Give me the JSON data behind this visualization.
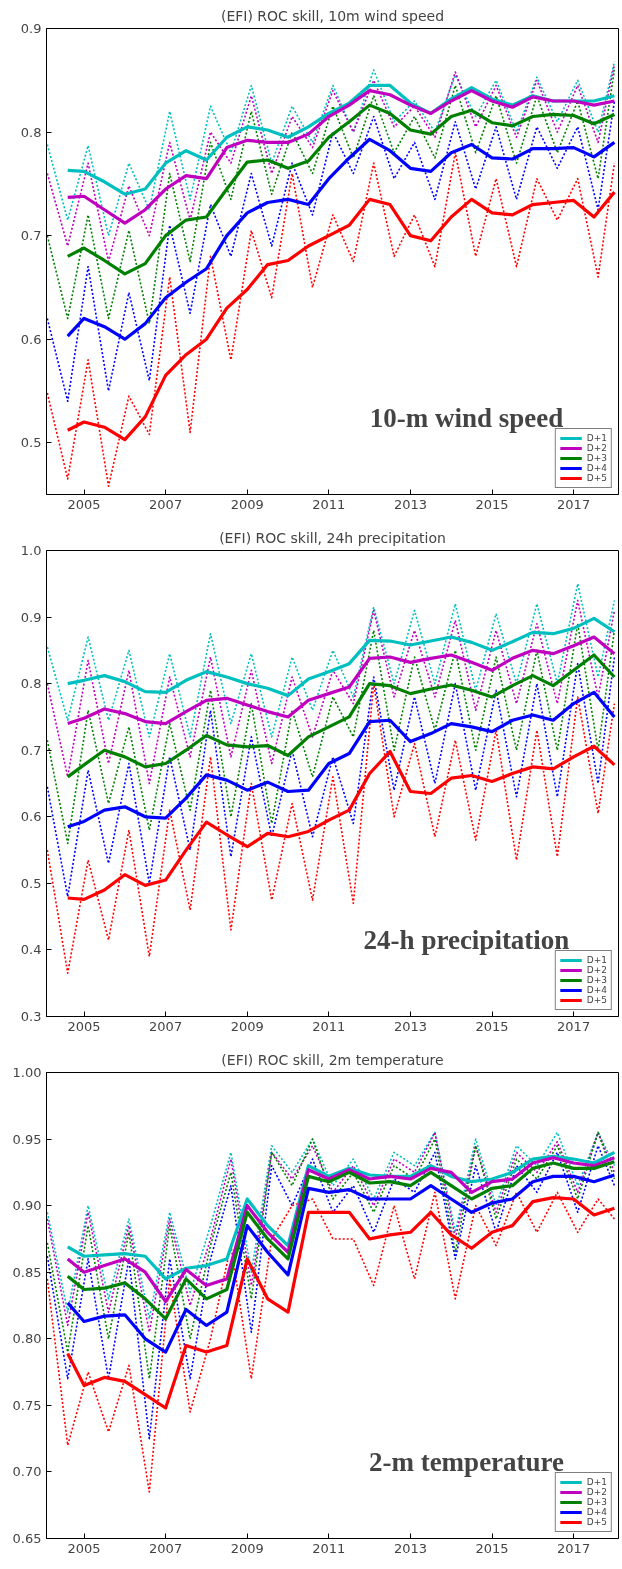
{
  "chart_data": [
    {
      "type": "line",
      "title": "(EFI) ROC skill, 10m wind speed",
      "annotations": [
        "10-m wind speed"
      ],
      "line_style": "solid",
      "legend": "bottom right",
      "grid": false,
      "marker": "none",
      "xlim": [
        2004.08,
        2018.1
      ],
      "xticks": [
        2005,
        2007,
        2009,
        2011,
        2013,
        2015,
        2017
      ],
      "ylim": [
        0.45,
        0.9
      ],
      "yticks": [
        0.5,
        0.6,
        0.7,
        0.8,
        0.9
      ],
      "x": [
        2004.6,
        2005,
        2005.5,
        2006,
        2006.5,
        2007,
        2007.5,
        2008,
        2008.5,
        2009,
        2009.5,
        2010,
        2010.5,
        2011,
        2011.5,
        2012,
        2012.5,
        2013,
        2013.5,
        2014,
        2014.5,
        2015,
        2015.5,
        2016,
        2016.5,
        2017,
        2017.5,
        2018
      ],
      "series": [
        {
          "name": "D+1",
          "color": "#00bfbf",
          "values": [
            0.763,
            0.762,
            0.752,
            0.74,
            0.745,
            0.77,
            0.782,
            0.773,
            0.795,
            0.805,
            0.802,
            0.795,
            0.805,
            0.818,
            0.828,
            0.845,
            0.845,
            0.828,
            0.818,
            0.832,
            0.843,
            0.832,
            0.826,
            0.835,
            0.83,
            0.83,
            0.83,
            0.835
          ]
        },
        {
          "name": "D+2",
          "color": "#bf00bf",
          "values": [
            0.737,
            0.738,
            0.725,
            0.712,
            0.725,
            0.745,
            0.758,
            0.755,
            0.785,
            0.792,
            0.79,
            0.79,
            0.798,
            0.815,
            0.826,
            0.84,
            0.836,
            0.826,
            0.818,
            0.83,
            0.84,
            0.83,
            0.824,
            0.834,
            0.83,
            0.83,
            0.826,
            0.83
          ]
        },
        {
          "name": "D+3",
          "color": "#008000",
          "values": [
            0.68,
            0.688,
            0.676,
            0.663,
            0.673,
            0.7,
            0.715,
            0.718,
            0.745,
            0.771,
            0.773,
            0.765,
            0.772,
            0.795,
            0.81,
            0.826,
            0.818,
            0.802,
            0.798,
            0.815,
            0.821,
            0.809,
            0.806,
            0.815,
            0.817,
            0.816,
            0.808,
            0.817
          ]
        },
        {
          "name": "D+4",
          "color": "#0000ff",
          "values": [
            0.603,
            0.62,
            0.612,
            0.6,
            0.615,
            0.64,
            0.655,
            0.668,
            0.7,
            0.722,
            0.732,
            0.735,
            0.73,
            0.755,
            0.775,
            0.793,
            0.782,
            0.765,
            0.762,
            0.78,
            0.788,
            0.775,
            0.774,
            0.784,
            0.784,
            0.785,
            0.776,
            0.79
          ]
        },
        {
          "name": "D+5",
          "color": "#ff0000",
          "values": [
            0.512,
            0.52,
            0.515,
            0.503,
            0.525,
            0.565,
            0.585,
            0.6,
            0.63,
            0.648,
            0.672,
            0.676,
            0.69,
            0.7,
            0.71,
            0.735,
            0.73,
            0.7,
            0.695,
            0.718,
            0.735,
            0.722,
            0.72,
            0.73,
            0.732,
            0.734,
            0.718,
            0.742
          ]
        },
        {
          "color": "#00bfbf",
          "line_style": "dotted",
          "x": [
            2004.1,
            2004.6,
            2005.1,
            2005.6,
            2006.1,
            2006.6,
            2007.1,
            2007.6,
            2008.1,
            2008.6,
            2009.1,
            2009.6,
            2010.1,
            2010.6,
            2011.1,
            2011.6,
            2012.1,
            2012.6,
            2013.1,
            2013.6,
            2014.1,
            2014.6,
            2015.1,
            2015.6,
            2016.1,
            2016.6,
            2017.1,
            2017.6,
            2018.0
          ],
          "values": [
            0.788,
            0.715,
            0.787,
            0.7,
            0.77,
            0.725,
            0.82,
            0.735,
            0.825,
            0.78,
            0.845,
            0.77,
            0.825,
            0.79,
            0.845,
            0.8,
            0.86,
            0.81,
            0.83,
            0.8,
            0.855,
            0.815,
            0.85,
            0.8,
            0.853,
            0.81,
            0.85,
            0.8,
            0.868
          ]
        },
        {
          "color": "#bf00bf",
          "line_style": "dotted",
          "x": [
            2004.1,
            2004.6,
            2005.1,
            2005.6,
            2006.1,
            2006.6,
            2007.1,
            2007.6,
            2008.1,
            2008.6,
            2009.1,
            2009.6,
            2010.1,
            2010.6,
            2011.1,
            2011.6,
            2012.1,
            2012.6,
            2013.1,
            2013.6,
            2014.1,
            2014.6,
            2015.1,
            2015.6,
            2016.1,
            2016.6,
            2017.1,
            2017.6,
            2018.0
          ],
          "values": [
            0.76,
            0.69,
            0.77,
            0.675,
            0.748,
            0.7,
            0.79,
            0.715,
            0.8,
            0.77,
            0.835,
            0.76,
            0.815,
            0.785,
            0.84,
            0.8,
            0.85,
            0.805,
            0.825,
            0.795,
            0.858,
            0.805,
            0.845,
            0.795,
            0.85,
            0.8,
            0.845,
            0.79,
            0.865
          ]
        },
        {
          "color": "#008000",
          "line_style": "dotted",
          "x": [
            2004.1,
            2004.6,
            2005.1,
            2005.6,
            2006.1,
            2006.6,
            2007.1,
            2007.6,
            2008.1,
            2008.6,
            2009.1,
            2009.6,
            2010.1,
            2010.6,
            2011.1,
            2011.6,
            2012.1,
            2012.6,
            2013.1,
            2013.6,
            2014.1,
            2014.6,
            2015.1,
            2015.6,
            2016.1,
            2016.6,
            2017.1,
            2017.6,
            2018.0
          ],
          "values": [
            0.7,
            0.62,
            0.72,
            0.62,
            0.705,
            0.615,
            0.76,
            0.675,
            0.79,
            0.735,
            0.82,
            0.74,
            0.8,
            0.76,
            0.825,
            0.775,
            0.835,
            0.78,
            0.815,
            0.775,
            0.845,
            0.78,
            0.835,
            0.77,
            0.835,
            0.78,
            0.83,
            0.755,
            0.86
          ]
        },
        {
          "color": "#0000ff",
          "line_style": "dotted",
          "x": [
            2004.1,
            2004.6,
            2005.1,
            2005.6,
            2006.1,
            2006.6,
            2007.1,
            2007.6,
            2008.1,
            2008.6,
            2009.1,
            2009.6,
            2010.1,
            2010.6,
            2011.1,
            2011.6,
            2012.1,
            2012.6,
            2013.1,
            2013.6,
            2014.1,
            2014.6,
            2015.1,
            2015.6,
            2016.1,
            2016.6,
            2017.1,
            2017.6,
            2018.0
          ],
          "values": [
            0.62,
            0.54,
            0.67,
            0.55,
            0.645,
            0.56,
            0.71,
            0.625,
            0.73,
            0.68,
            0.76,
            0.69,
            0.77,
            0.72,
            0.8,
            0.76,
            0.815,
            0.755,
            0.79,
            0.735,
            0.81,
            0.745,
            0.805,
            0.735,
            0.805,
            0.765,
            0.805,
            0.725,
            0.83
          ]
        },
        {
          "color": "#ff0000",
          "line_style": "dotted",
          "x": [
            2004.1,
            2004.6,
            2005.1,
            2005.6,
            2006.1,
            2006.6,
            2007.1,
            2007.6,
            2008.1,
            2008.6,
            2009.1,
            2009.6,
            2010.1,
            2010.6,
            2011.1,
            2011.6,
            2012.1,
            2012.6,
            2013.1,
            2013.6,
            2014.1,
            2014.6,
            2015.1,
            2015.6,
            2016.1,
            2016.6,
            2017.1,
            2017.6,
            2018.0
          ],
          "values": [
            0.548,
            0.465,
            0.58,
            0.458,
            0.545,
            0.508,
            0.66,
            0.51,
            0.68,
            0.58,
            0.705,
            0.64,
            0.76,
            0.65,
            0.72,
            0.675,
            0.77,
            0.68,
            0.72,
            0.67,
            0.78,
            0.68,
            0.755,
            0.67,
            0.755,
            0.715,
            0.755,
            0.66,
            0.77
          ]
        }
      ]
    },
    {
      "type": "line",
      "title": "(EFI) ROC skill, 24h precipitation",
      "annotations": [
        "24-h precipitation"
      ],
      "line_style": "solid",
      "legend": "bottom right",
      "grid": false,
      "marker": "none",
      "xlim": [
        2004.08,
        2018.1
      ],
      "xticks": [
        2005,
        2007,
        2009,
        2011,
        2013,
        2015,
        2017
      ],
      "ylim": [
        0.3,
        1.0
      ],
      "yticks": [
        0.3,
        0.4,
        0.5,
        0.6,
        0.7,
        0.8,
        0.9,
        {
          "value": 1.0,
          "label": "1.0"
        }
      ],
      "x": [
        2004.6,
        2005,
        2005.5,
        2006,
        2006.5,
        2007,
        2007.5,
        2008,
        2008.5,
        2009,
        2009.5,
        2010,
        2010.5,
        2011,
        2011.5,
        2012,
        2012.5,
        2013,
        2013.5,
        2014,
        2014.5,
        2015,
        2015.5,
        2016,
        2016.5,
        2017,
        2017.5,
        2018
      ],
      "series": [
        {
          "name": "D+1",
          "color": "#00bfbf",
          "values": [
            0.8,
            0.805,
            0.812,
            0.803,
            0.788,
            0.787,
            0.805,
            0.818,
            0.81,
            0.8,
            0.793,
            0.782,
            0.807,
            0.818,
            0.83,
            0.865,
            0.864,
            0.858,
            0.864,
            0.87,
            0.862,
            0.85,
            0.863,
            0.877,
            0.875,
            0.883,
            0.898,
            0.878
          ]
        },
        {
          "name": "D+2",
          "color": "#bf00bf",
          "values": [
            0.74,
            0.748,
            0.762,
            0.755,
            0.743,
            0.74,
            0.758,
            0.775,
            0.778,
            0.768,
            0.758,
            0.75,
            0.775,
            0.785,
            0.795,
            0.838,
            0.84,
            0.832,
            0.838,
            0.843,
            0.832,
            0.82,
            0.838,
            0.85,
            0.845,
            0.857,
            0.87,
            0.845
          ]
        },
        {
          "name": "D+3",
          "color": "#008000",
          "values": [
            0.66,
            0.678,
            0.7,
            0.69,
            0.675,
            0.68,
            0.7,
            0.722,
            0.708,
            0.705,
            0.707,
            0.692,
            0.72,
            0.735,
            0.75,
            0.8,
            0.797,
            0.785,
            0.792,
            0.798,
            0.79,
            0.78,
            0.797,
            0.812,
            0.797,
            0.82,
            0.843,
            0.81
          ]
        },
        {
          "name": "D+4",
          "color": "#0000ff",
          "values": [
            0.585,
            0.593,
            0.61,
            0.615,
            0.6,
            0.598,
            0.628,
            0.663,
            0.655,
            0.64,
            0.652,
            0.638,
            0.64,
            0.68,
            0.695,
            0.743,
            0.745,
            0.713,
            0.725,
            0.74,
            0.735,
            0.728,
            0.745,
            0.753,
            0.745,
            0.77,
            0.787,
            0.75
          ]
        },
        {
          "name": "D+5",
          "color": "#ff0000",
          "values": [
            0.478,
            0.476,
            0.49,
            0.513,
            0.497,
            0.505,
            0.55,
            0.592,
            0.573,
            0.555,
            0.575,
            0.57,
            0.578,
            0.595,
            0.61,
            0.665,
            0.698,
            0.638,
            0.635,
            0.658,
            0.662,
            0.653,
            0.665,
            0.675,
            0.672,
            0.69,
            0.706,
            0.678
          ]
        },
        {
          "color": "#00bfbf",
          "line_style": "dotted",
          "x": [
            2004.1,
            2004.6,
            2005.1,
            2005.6,
            2006.1,
            2006.6,
            2007.1,
            2007.6,
            2008.1,
            2008.6,
            2009.1,
            2009.6,
            2010.1,
            2010.6,
            2011.1,
            2011.6,
            2012.1,
            2012.6,
            2013.1,
            2013.6,
            2014.1,
            2014.6,
            2015.1,
            2015.6,
            2016.1,
            2016.6,
            2017.1,
            2017.6,
            2018.0
          ],
          "values": [
            0.855,
            0.745,
            0.87,
            0.745,
            0.85,
            0.72,
            0.845,
            0.72,
            0.875,
            0.74,
            0.845,
            0.72,
            0.84,
            0.76,
            0.85,
            0.78,
            0.915,
            0.8,
            0.91,
            0.8,
            0.92,
            0.79,
            0.905,
            0.8,
            0.92,
            0.8,
            0.95,
            0.81,
            0.925
          ]
        },
        {
          "color": "#bf00bf",
          "line_style": "dotted",
          "x": [
            2004.1,
            2004.6,
            2005.1,
            2005.6,
            2006.1,
            2006.6,
            2007.1,
            2007.6,
            2008.1,
            2008.6,
            2009.1,
            2009.6,
            2010.1,
            2010.6,
            2011.1,
            2011.6,
            2012.1,
            2012.6,
            2013.1,
            2013.6,
            2014.1,
            2014.6,
            2015.1,
            2015.6,
            2016.1,
            2016.6,
            2017.1,
            2017.6,
            2018.0
          ],
          "values": [
            0.8,
            0.66,
            0.835,
            0.68,
            0.82,
            0.65,
            0.81,
            0.69,
            0.84,
            0.69,
            0.82,
            0.68,
            0.81,
            0.72,
            0.82,
            0.77,
            0.91,
            0.78,
            0.88,
            0.78,
            0.895,
            0.76,
            0.88,
            0.77,
            0.89,
            0.77,
            0.925,
            0.78,
            0.91
          ]
        },
        {
          "color": "#008000",
          "line_style": "dotted",
          "x": [
            2004.1,
            2004.6,
            2005.1,
            2005.6,
            2006.1,
            2006.6,
            2007.1,
            2007.6,
            2008.1,
            2008.6,
            2009.1,
            2009.6,
            2010.1,
            2010.6,
            2011.1,
            2011.6,
            2012.1,
            2012.6,
            2013.1,
            2013.6,
            2014.1,
            2014.6,
            2015.1,
            2015.6,
            2016.1,
            2016.6,
            2017.1,
            2017.6,
            2018.0
          ],
          "values": [
            0.715,
            0.56,
            0.76,
            0.62,
            0.735,
            0.58,
            0.74,
            0.61,
            0.79,
            0.6,
            0.77,
            0.59,
            0.76,
            0.66,
            0.78,
            0.72,
            0.88,
            0.7,
            0.84,
            0.73,
            0.85,
            0.7,
            0.84,
            0.7,
            0.85,
            0.7,
            0.89,
            0.7,
            0.88
          ]
        },
        {
          "color": "#0000ff",
          "line_style": "dotted",
          "x": [
            2004.1,
            2004.6,
            2005.1,
            2005.6,
            2006.1,
            2006.6,
            2007.1,
            2007.6,
            2008.1,
            2008.6,
            2009.1,
            2009.6,
            2010.1,
            2010.6,
            2011.1,
            2011.6,
            2012.1,
            2012.6,
            2013.1,
            2013.6,
            2014.1,
            2014.6,
            2015.1,
            2015.6,
            2016.1,
            2016.6,
            2017.1,
            2017.6,
            2018.0
          ],
          "values": [
            0.645,
            0.48,
            0.67,
            0.53,
            0.68,
            0.5,
            0.69,
            0.55,
            0.76,
            0.54,
            0.72,
            0.57,
            0.7,
            0.57,
            0.69,
            0.59,
            0.81,
            0.64,
            0.78,
            0.65,
            0.8,
            0.64,
            0.79,
            0.63,
            0.8,
            0.63,
            0.83,
            0.65,
            0.84
          ]
        },
        {
          "color": "#ff0000",
          "line_style": "dotted",
          "x": [
            2004.1,
            2004.6,
            2005.1,
            2005.6,
            2006.1,
            2006.6,
            2007.1,
            2007.6,
            2008.1,
            2008.6,
            2009.1,
            2009.6,
            2010.1,
            2010.6,
            2011.1,
            2011.6,
            2012.1,
            2012.6,
            2013.1,
            2013.6,
            2014.1,
            2014.6,
            2015.1,
            2015.6,
            2016.1,
            2016.6,
            2017.1,
            2017.6,
            2018.0
          ],
          "values": [
            0.55,
            0.365,
            0.535,
            0.415,
            0.58,
            0.39,
            0.61,
            0.46,
            0.69,
            0.43,
            0.65,
            0.475,
            0.62,
            0.475,
            0.66,
            0.47,
            0.8,
            0.6,
            0.71,
            0.57,
            0.715,
            0.565,
            0.73,
            0.535,
            0.73,
            0.54,
            0.78,
            0.605,
            0.77
          ]
        }
      ]
    },
    {
      "type": "line",
      "title": "(EFI) ROC skill, 2m temperature",
      "annotations": [
        "2-m temperature"
      ],
      "line_style": "solid",
      "legend": "bottom right",
      "grid": false,
      "marker": "none",
      "xlim": [
        2004.08,
        2018.1
      ],
      "xticks": [
        2005,
        2007,
        2009,
        2011,
        2013,
        2015,
        2017
      ],
      "ylim": [
        0.65,
        1.0
      ],
      "yticks": [
        {
          "value": 0.65,
          "label": "0.65"
        },
        {
          "value": 0.7,
          "label": "0.70"
        },
        {
          "value": 0.75,
          "label": "0.75"
        },
        {
          "value": 0.8,
          "label": "0.80"
        },
        {
          "value": 0.85,
          "label": "0.85"
        },
        {
          "value": 0.9,
          "label": "0.90"
        },
        {
          "value": 0.95,
          "label": "0.95"
        },
        {
          "value": 1.0,
          "label": "1.00"
        }
      ],
      "x": [
        2004.6,
        2005,
        2005.5,
        2006,
        2006.5,
        2007,
        2007.5,
        2008,
        2008.5,
        2009,
        2009.5,
        2010,
        2010.5,
        2011,
        2011.5,
        2012,
        2012.5,
        2013,
        2013.5,
        2014,
        2014.5,
        2015,
        2015.5,
        2016,
        2016.5,
        2017,
        2017.5,
        2018
      ],
      "series": [
        {
          "name": "D+1",
          "color": "#00bfbf",
          "values": [
            0.869,
            0.862,
            0.863,
            0.864,
            0.862,
            0.845,
            0.853,
            0.855,
            0.86,
            0.905,
            0.885,
            0.87,
            0.93,
            0.922,
            0.928,
            0.923,
            0.922,
            0.922,
            0.93,
            0.922,
            0.918,
            0.92,
            0.925,
            0.935,
            0.937,
            0.935,
            0.932,
            0.94
          ]
        },
        {
          "name": "D+2",
          "color": "#bf00bf",
          "values": [
            0.86,
            0.85,
            0.855,
            0.86,
            0.85,
            0.828,
            0.852,
            0.84,
            0.845,
            0.9,
            0.88,
            0.865,
            0.927,
            0.92,
            0.927,
            0.92,
            0.922,
            0.92,
            0.928,
            0.925,
            0.91,
            0.918,
            0.92,
            0.932,
            0.936,
            0.932,
            0.93,
            0.936
          ]
        },
        {
          "name": "D+3",
          "color": "#008000",
          "values": [
            0.847,
            0.837,
            0.838,
            0.842,
            0.83,
            0.815,
            0.845,
            0.83,
            0.837,
            0.895,
            0.875,
            0.86,
            0.922,
            0.918,
            0.925,
            0.917,
            0.918,
            0.915,
            0.925,
            0.915,
            0.905,
            0.913,
            0.915,
            0.928,
            0.932,
            0.928,
            0.928,
            0.933
          ]
        },
        {
          "name": "D+4",
          "color": "#0000ff",
          "values": [
            0.827,
            0.813,
            0.817,
            0.818,
            0.8,
            0.79,
            0.822,
            0.81,
            0.82,
            0.885,
            0.865,
            0.848,
            0.913,
            0.91,
            0.912,
            0.905,
            0.905,
            0.905,
            0.915,
            0.905,
            0.895,
            0.902,
            0.905,
            0.918,
            0.922,
            0.922,
            0.918,
            0.923
          ]
        },
        {
          "name": "D+5",
          "color": "#ff0000",
          "values": [
            0.789,
            0.765,
            0.771,
            0.768,
            0.758,
            0.748,
            0.795,
            0.79,
            0.795,
            0.86,
            0.83,
            0.82,
            0.895,
            0.895,
            0.895,
            0.875,
            0.878,
            0.88,
            0.895,
            0.878,
            0.868,
            0.88,
            0.885,
            0.903,
            0.906,
            0.905,
            0.893,
            0.898
          ]
        },
        {
          "color": "#00bfbf",
          "line_style": "dotted",
          "x": [
            2004.1,
            2004.6,
            2005.1,
            2005.6,
            2006.1,
            2006.6,
            2007.1,
            2007.6,
            2008.1,
            2008.6,
            2009.1,
            2009.6,
            2010.1,
            2010.6,
            2011.1,
            2011.6,
            2012.1,
            2012.6,
            2013.1,
            2013.6,
            2014.1,
            2014.6,
            2015.1,
            2015.6,
            2016.1,
            2016.6,
            2017.1,
            2017.6,
            2018.0
          ],
          "values": [
            0.895,
            0.82,
            0.9,
            0.83,
            0.89,
            0.815,
            0.895,
            0.835,
            0.885,
            0.94,
            0.85,
            0.945,
            0.925,
            0.95,
            0.915,
            0.935,
            0.905,
            0.94,
            0.93,
            0.955,
            0.88,
            0.95,
            0.9,
            0.945,
            0.93,
            0.955,
            0.915,
            0.955,
            0.93
          ]
        },
        {
          "color": "#bf00bf",
          "line_style": "dotted",
          "x": [
            2004.1,
            2004.6,
            2005.1,
            2005.6,
            2006.1,
            2006.6,
            2007.1,
            2007.6,
            2008.1,
            2008.6,
            2009.1,
            2009.6,
            2010.1,
            2010.6,
            2011.1,
            2011.6,
            2012.1,
            2012.6,
            2013.1,
            2013.6,
            2014.1,
            2014.6,
            2015.1,
            2015.6,
            2016.1,
            2016.6,
            2017.1,
            2017.6,
            2018.0
          ],
          "values": [
            0.89,
            0.81,
            0.895,
            0.82,
            0.885,
            0.805,
            0.89,
            0.825,
            0.875,
            0.935,
            0.84,
            0.94,
            0.92,
            0.945,
            0.91,
            0.93,
            0.9,
            0.935,
            0.925,
            0.955,
            0.875,
            0.945,
            0.895,
            0.94,
            0.925,
            0.948,
            0.91,
            0.955,
            0.925
          ]
        },
        {
          "color": "#008000",
          "line_style": "dotted",
          "x": [
            2004.1,
            2004.6,
            2005.1,
            2005.6,
            2006.1,
            2006.6,
            2007.1,
            2007.6,
            2008.1,
            2008.6,
            2009.1,
            2009.6,
            2010.1,
            2010.6,
            2011.1,
            2011.6,
            2012.1,
            2012.6,
            2013.1,
            2013.6,
            2014.1,
            2014.6,
            2015.1,
            2015.6,
            2016.1,
            2016.6,
            2017.1,
            2017.6,
            2018.0
          ],
          "values": [
            0.872,
            0.79,
            0.885,
            0.8,
            0.88,
            0.77,
            0.885,
            0.8,
            0.87,
            0.925,
            0.83,
            0.94,
            0.915,
            0.95,
            0.905,
            0.925,
            0.895,
            0.93,
            0.92,
            0.95,
            0.865,
            0.945,
            0.89,
            0.935,
            0.92,
            0.945,
            0.905,
            0.955,
            0.92
          ]
        },
        {
          "color": "#0000ff",
          "line_style": "dotted",
          "x": [
            2004.1,
            2004.6,
            2005.1,
            2005.6,
            2006.1,
            2006.6,
            2007.1,
            2007.6,
            2008.1,
            2008.6,
            2009.1,
            2009.6,
            2010.1,
            2010.6,
            2011.1,
            2011.6,
            2012.1,
            2012.6,
            2013.1,
            2013.6,
            2014.1,
            2014.6,
            2015.1,
            2015.6,
            2016.1,
            2016.6,
            2017.1,
            2017.6,
            2018.0
          ],
          "values": [
            0.862,
            0.77,
            0.86,
            0.77,
            0.86,
            0.725,
            0.86,
            0.77,
            0.86,
            0.915,
            0.805,
            0.93,
            0.9,
            0.935,
            0.895,
            0.915,
            0.88,
            0.92,
            0.91,
            0.94,
            0.86,
            0.93,
            0.88,
            0.93,
            0.91,
            0.94,
            0.895,
            0.945,
            0.915
          ]
        },
        {
          "color": "#ff0000",
          "line_style": "dotted",
          "x": [
            2004.1,
            2004.6,
            2005.1,
            2005.6,
            2006.1,
            2006.6,
            2007.1,
            2007.6,
            2008.1,
            2008.6,
            2009.1,
            2009.6,
            2010.1,
            2010.6,
            2011.1,
            2011.6,
            2012.1,
            2012.6,
            2013.1,
            2013.6,
            2014.1,
            2014.6,
            2015.1,
            2015.6,
            2016.1,
            2016.6,
            2017.1,
            2017.6,
            2018.0
          ],
          "values": [
            0.845,
            0.72,
            0.775,
            0.73,
            0.78,
            0.685,
            0.845,
            0.745,
            0.8,
            0.87,
            0.77,
            0.875,
            0.9,
            0.905,
            0.875,
            0.875,
            0.84,
            0.9,
            0.845,
            0.91,
            0.83,
            0.9,
            0.87,
            0.91,
            0.88,
            0.91,
            0.88,
            0.905,
            0.89
          ]
        }
      ]
    }
  ]
}
